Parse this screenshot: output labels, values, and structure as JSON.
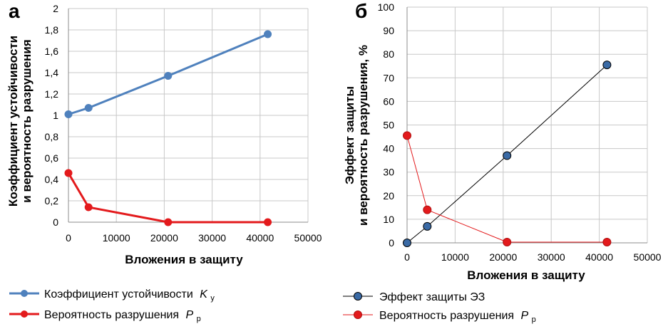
{
  "chart_data": [
    {
      "type": "line",
      "panel_label": "а",
      "xlabel": "Вложения в защиту",
      "ylabel": [
        "Коэффициент устойчивости",
        "и вероятность разрушения"
      ],
      "xlim": [
        0,
        50000
      ],
      "ylim": [
        0,
        2
      ],
      "xticks": [
        "0",
        "10000",
        "20000",
        "30000",
        "40000",
        "50000"
      ],
      "yticks": [
        "0",
        "0,2",
        "0,4",
        "0,6",
        "0,8",
        "1",
        "1,2",
        "1,4",
        "1,6",
        "1,8",
        "2"
      ],
      "grid": true,
      "legend_position": "bottom",
      "series": [
        {
          "name": "Коэффициент устойчивости",
          "legend_label": "Коэффициент устойчивости",
          "symbol": "K",
          "subscript": "у",
          "color": "#4f81bd",
          "x": [
            0,
            4200,
            20800,
            41600
          ],
          "y": [
            1.01,
            1.07,
            1.37,
            1.76
          ]
        },
        {
          "name": "Вероятность разрушения",
          "legend_label": "Вероятность разрушения",
          "symbol": "P",
          "subscript": "р",
          "color": "#e31a1c",
          "x": [
            0,
            4200,
            20800,
            41600
          ],
          "y": [
            0.46,
            0.14,
            0.0,
            0.0
          ]
        }
      ]
    },
    {
      "type": "line",
      "panel_label": "б",
      "xlabel": "Вложения в защиту",
      "ylabel": [
        "Эффект защиты",
        "и вероятность разрушения, %"
      ],
      "xlim": [
        0,
        50000
      ],
      "ylim": [
        0,
        100
      ],
      "xticks": [
        "0",
        "10000",
        "20000",
        "30000",
        "40000",
        "50000"
      ],
      "yticks": [
        "0",
        "10",
        "20",
        "30",
        "40",
        "50",
        "60",
        "70",
        "80",
        "90",
        "100"
      ],
      "grid": true,
      "legend_position": "bottom",
      "series": [
        {
          "name": "Эффект защиты ЭЗ",
          "legend_label": "Эффект защиты ЭЗ",
          "symbol": "",
          "subscript": "",
          "color": "#000000",
          "marker_fill": "#3a6aa5",
          "x": [
            0,
            4200,
            20800,
            41600
          ],
          "y": [
            0,
            7,
            37,
            75.5
          ]
        },
        {
          "name": "Вероятность разрушения",
          "legend_label": "Вероятность разрушения",
          "symbol": "P",
          "subscript": "р",
          "color": "#e31a1c",
          "marker_fill": "#e31a1c",
          "x": [
            0,
            4200,
            20800,
            41600
          ],
          "y": [
            45.5,
            14,
            0.3,
            0.3
          ]
        }
      ]
    }
  ]
}
